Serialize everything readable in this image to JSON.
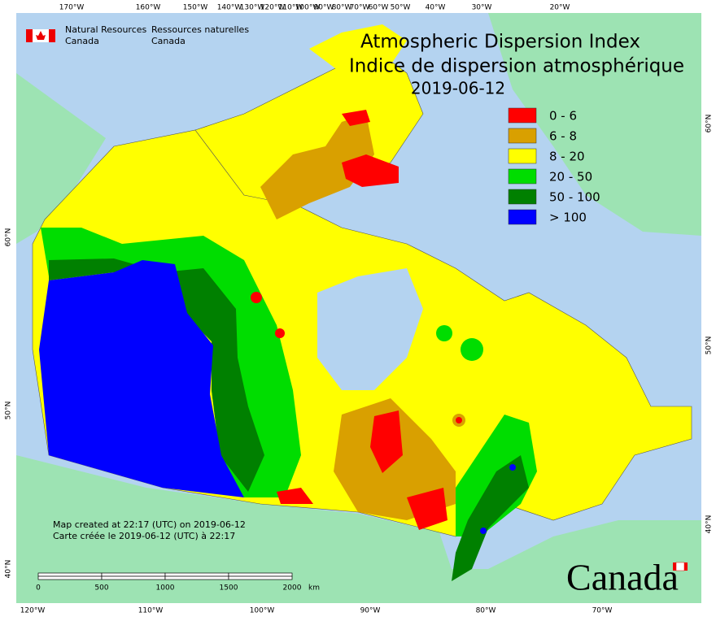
{
  "agency": {
    "en_line1": "Natural Resources",
    "en_line2": "Canada",
    "fr_line1": "Ressources naturelles",
    "fr_line2": "Canada"
  },
  "title": {
    "line1": "Atmospheric Dispersion Index",
    "line2": "Indice de dispersion atmosphérique",
    "date": "2019-06-12"
  },
  "legend": [
    {
      "label": "0 - 6",
      "color": "#ff0000"
    },
    {
      "label": "6 - 8",
      "color": "#d9a000"
    },
    {
      "label": "8 - 20",
      "color": "#ffff00"
    },
    {
      "label": "20 - 50",
      "color": "#00dd00"
    },
    {
      "label": "50 - 100",
      "color": "#008000"
    },
    {
      "label": "> 100",
      "color": "#0000ff"
    }
  ],
  "graticule": {
    "top": [
      "170°W",
      "160°W",
      "150°W",
      "140°W",
      "130°W",
      "120°W",
      "110°W",
      "100°W",
      "90°W",
      "80°W",
      "70°W",
      "60°W",
      "50°W",
      "40°W",
      "30°W",
      "20°W"
    ],
    "bottom": [
      "120°W",
      "110°W",
      "100°W",
      "90°W",
      "80°W",
      "70°W"
    ],
    "left": [
      "60°N",
      "50°N",
      "40°N"
    ],
    "right": [
      "60°N",
      "50°N",
      "40°N"
    ]
  },
  "footer": {
    "created_en": "Map created at 22:17 (UTC) on 2019-06-12",
    "created_fr": "Carte créée le 2019-06-12 (UTC) à 22:17"
  },
  "scale_bar": {
    "labels": [
      "0",
      "500",
      "1000",
      "1500",
      "2000"
    ],
    "unit": "km"
  },
  "wordmark": "Canada"
}
